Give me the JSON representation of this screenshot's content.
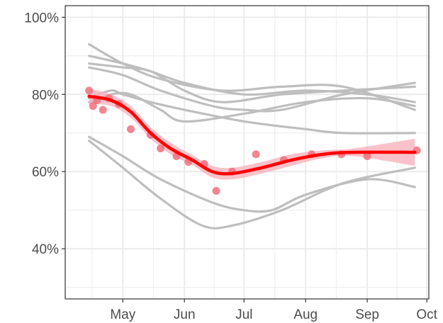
{
  "chart_data": {
    "type": "scatter",
    "title": "",
    "xlabel": "",
    "ylabel": "",
    "x_axis": {
      "type": "date",
      "range": [
        "2020-04-02",
        "2020-10-02"
      ],
      "ticks": [
        {
          "date": "2020-05-01",
          "label": "May"
        },
        {
          "date": "2020-06-01",
          "label": "Jun"
        },
        {
          "date": "2020-07-01",
          "label": "Jul"
        },
        {
          "date": "2020-08-01",
          "label": "Aug"
        },
        {
          "date": "2020-09-01",
          "label": "Sep"
        },
        {
          "date": "2020-10-01",
          "label": "Oct"
        }
      ]
    },
    "y_axis": {
      "range": [
        27,
        103
      ],
      "ticks": [
        {
          "value": 40,
          "label": "40%"
        },
        {
          "value": 60,
          "label": "60%"
        },
        {
          "value": 80,
          "label": "80%"
        },
        {
          "value": 100,
          "label": "100%"
        }
      ]
    },
    "grid": true,
    "legend": "none",
    "colors": {
      "highlight": "#ff0000",
      "ribbon": "#f7b3bd",
      "points": "#f0707e",
      "background_series": "#bebebe",
      "panel_border": "#333333",
      "grid": "#ebebeb"
    },
    "background_series": [
      {
        "points": [
          [
            "2020-04-14",
            93
          ],
          [
            "2020-05-01",
            88
          ],
          [
            "2020-05-20",
            84
          ],
          [
            "2020-06-20",
            81
          ],
          [
            "2020-07-20",
            82
          ],
          [
            "2020-08-20",
            82
          ],
          [
            "2020-09-25",
            76
          ]
        ]
      },
      {
        "points": [
          [
            "2020-04-14",
            90
          ],
          [
            "2020-05-01",
            88
          ],
          [
            "2020-05-15",
            86
          ],
          [
            "2020-06-01",
            83
          ],
          [
            "2020-07-01",
            80
          ],
          [
            "2020-08-01",
            81
          ],
          [
            "2020-09-01",
            80
          ],
          [
            "2020-09-25",
            78
          ]
        ]
      },
      {
        "points": [
          [
            "2020-04-14",
            88
          ],
          [
            "2020-05-01",
            87
          ],
          [
            "2020-05-15",
            86
          ],
          [
            "2020-06-01",
            81
          ],
          [
            "2020-06-20",
            78
          ],
          [
            "2020-07-20",
            80
          ],
          [
            "2020-08-20",
            81
          ],
          [
            "2020-09-25",
            82
          ]
        ]
      },
      {
        "points": [
          [
            "2020-04-14",
            87
          ],
          [
            "2020-05-01",
            85
          ],
          [
            "2020-05-20",
            81
          ],
          [
            "2020-06-15",
            77
          ],
          [
            "2020-07-01",
            76
          ],
          [
            "2020-07-20",
            76
          ],
          [
            "2020-08-20",
            80
          ],
          [
            "2020-09-25",
            83
          ]
        ]
      },
      {
        "points": [
          [
            "2020-04-14",
            79
          ],
          [
            "2020-04-25",
            81
          ],
          [
            "2020-05-01",
            80
          ],
          [
            "2020-05-15",
            78
          ],
          [
            "2020-06-01",
            76
          ],
          [
            "2020-07-01",
            73
          ],
          [
            "2020-08-01",
            71
          ],
          [
            "2020-08-20",
            70
          ],
          [
            "2020-09-25",
            70
          ]
        ]
      },
      {
        "points": [
          [
            "2020-04-14",
            78
          ],
          [
            "2020-04-25",
            80
          ],
          [
            "2020-05-05",
            80
          ],
          [
            "2020-05-20",
            76
          ],
          [
            "2020-06-01",
            73
          ],
          [
            "2020-07-01",
            75
          ],
          [
            "2020-08-01",
            78
          ],
          [
            "2020-09-01",
            79
          ],
          [
            "2020-09-25",
            77
          ]
        ]
      },
      {
        "points": [
          [
            "2020-04-14",
            69
          ],
          [
            "2020-05-01",
            64
          ],
          [
            "2020-05-20",
            58
          ],
          [
            "2020-06-15",
            52
          ],
          [
            "2020-07-01",
            50
          ],
          [
            "2020-07-15",
            50
          ],
          [
            "2020-08-01",
            54
          ],
          [
            "2020-09-01",
            58
          ],
          [
            "2020-09-25",
            56
          ]
        ]
      },
      {
        "points": [
          [
            "2020-04-14",
            68
          ],
          [
            "2020-05-01",
            61
          ],
          [
            "2020-05-20",
            53
          ],
          [
            "2020-06-10",
            46
          ],
          [
            "2020-06-25",
            46
          ],
          [
            "2020-07-20",
            50
          ],
          [
            "2020-08-20",
            57
          ],
          [
            "2020-09-25",
            61
          ]
        ]
      }
    ],
    "highlight_series": {
      "smooth": [
        [
          "2020-04-14",
          79.5
        ],
        [
          "2020-04-25",
          78.5
        ],
        [
          "2020-05-05",
          75.5
        ],
        [
          "2020-05-15",
          70
        ],
        [
          "2020-05-25",
          66
        ],
        [
          "2020-06-05",
          63
        ],
        [
          "2020-06-15",
          60
        ],
        [
          "2020-06-25",
          59.5
        ],
        [
          "2020-07-10",
          61
        ],
        [
          "2020-07-25",
          63
        ],
        [
          "2020-08-10",
          64.5
        ],
        [
          "2020-08-25",
          65
        ],
        [
          "2020-09-25",
          65
        ]
      ],
      "ribbon_upper": [
        [
          "2020-04-14",
          81.5
        ],
        [
          "2020-04-25",
          80
        ],
        [
          "2020-05-05",
          77
        ],
        [
          "2020-05-15",
          71.5
        ],
        [
          "2020-05-25",
          67.5
        ],
        [
          "2020-06-05",
          64.3
        ],
        [
          "2020-06-15",
          61.5
        ],
        [
          "2020-06-25",
          61
        ],
        [
          "2020-07-10",
          62.5
        ],
        [
          "2020-07-25",
          64.5
        ],
        [
          "2020-08-10",
          65.5
        ],
        [
          "2020-08-25",
          66
        ],
        [
          "2020-09-25",
          68.5
        ]
      ],
      "ribbon_lower": [
        [
          "2020-04-14",
          77.5
        ],
        [
          "2020-04-25",
          77
        ],
        [
          "2020-05-05",
          74
        ],
        [
          "2020-05-15",
          68.5
        ],
        [
          "2020-05-25",
          64.5
        ],
        [
          "2020-06-05",
          61.7
        ],
        [
          "2020-06-15",
          58.5
        ],
        [
          "2020-06-25",
          58
        ],
        [
          "2020-07-10",
          59.5
        ],
        [
          "2020-07-25",
          61.5
        ],
        [
          "2020-08-10",
          63.5
        ],
        [
          "2020-08-25",
          64
        ],
        [
          "2020-09-25",
          61.5
        ]
      ],
      "points": [
        [
          "2020-04-14",
          81
        ],
        [
          "2020-04-16",
          77
        ],
        [
          "2020-04-18",
          78.5
        ],
        [
          "2020-04-21",
          76
        ],
        [
          "2020-04-24",
          79
        ],
        [
          "2020-04-29",
          77.5
        ],
        [
          "2020-05-05",
          71
        ],
        [
          "2020-05-15",
          69.5
        ],
        [
          "2020-05-20",
          66
        ],
        [
          "2020-05-28",
          64
        ],
        [
          "2020-06-03",
          62.5
        ],
        [
          "2020-06-11",
          62
        ],
        [
          "2020-06-17",
          55
        ],
        [
          "2020-06-25",
          60
        ],
        [
          "2020-07-07",
          64.5
        ],
        [
          "2020-07-21",
          63
        ],
        [
          "2020-08-04",
          64.5
        ],
        [
          "2020-08-19",
          64.5
        ],
        [
          "2020-09-01",
          64
        ],
        [
          "2020-09-26",
          65.5
        ]
      ]
    }
  }
}
